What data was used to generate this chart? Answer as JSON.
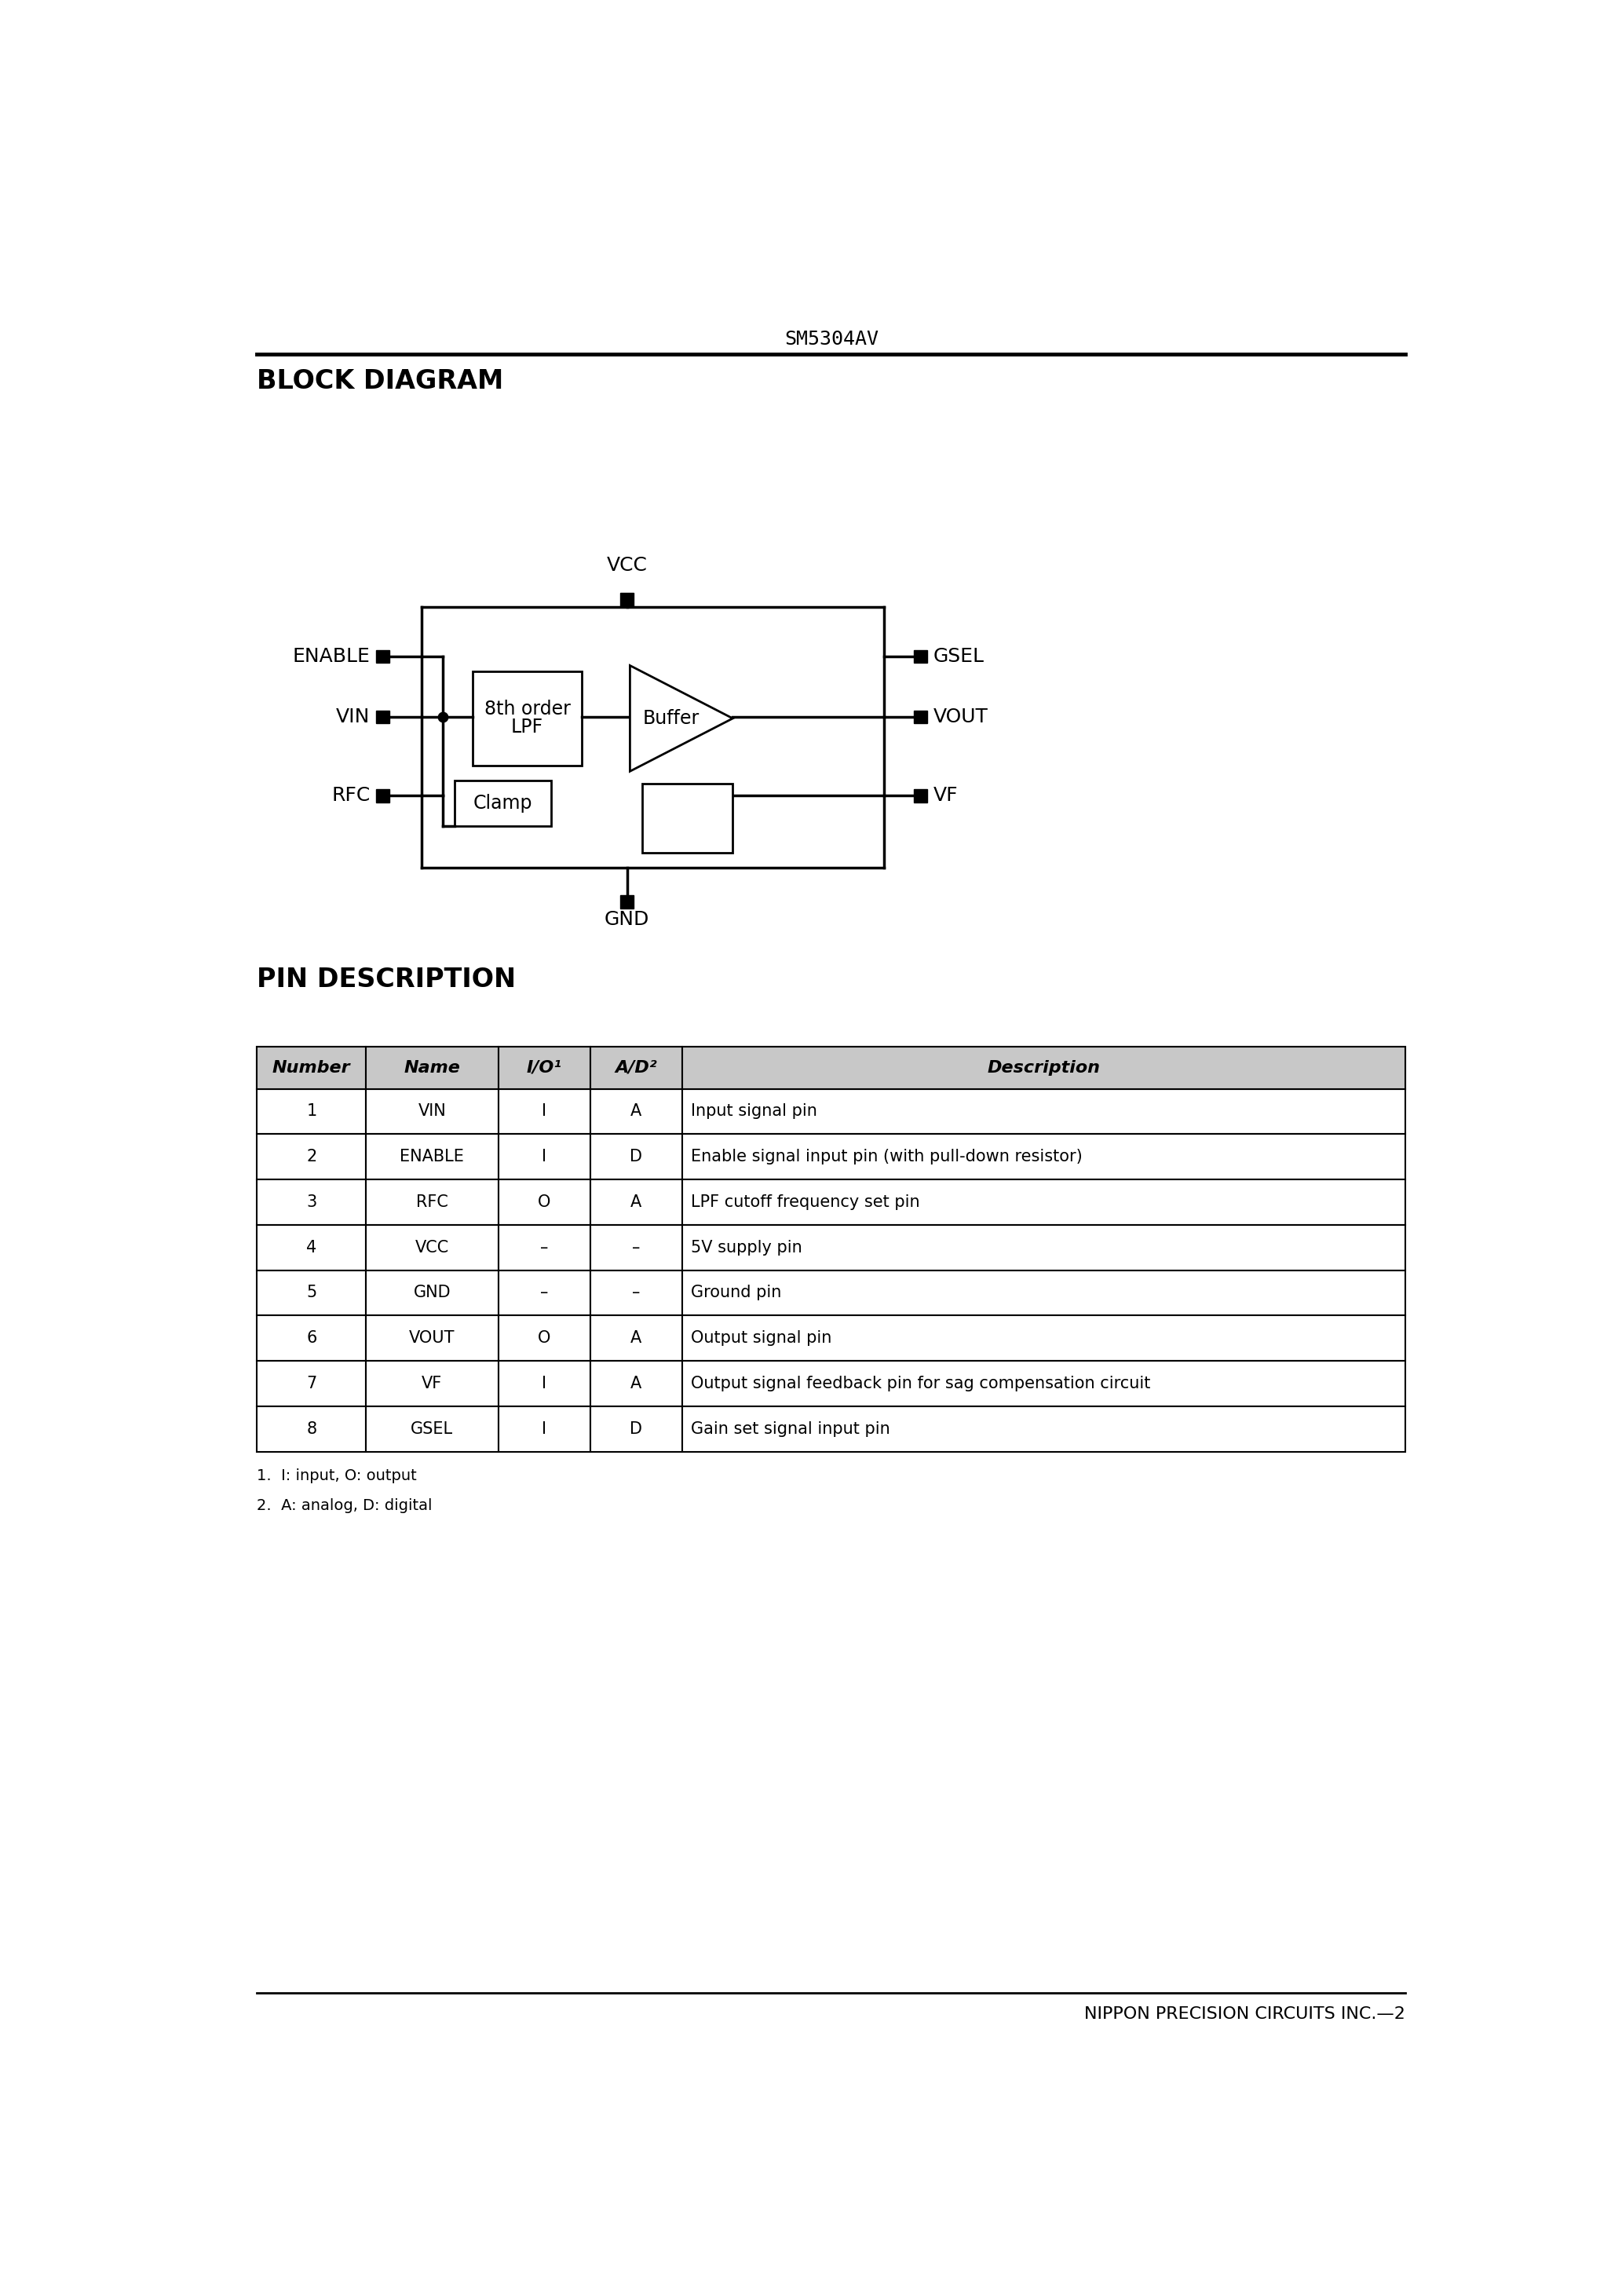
{
  "page_title": "SM5304AV",
  "footer_text": "NIPPON PRECISION CIRCUITS INC.—2",
  "section1_title": "BLOCK DIAGRAM",
  "section2_title": "PIN DESCRIPTION",
  "table": {
    "headers": [
      "Number",
      "Name",
      "I/O¹",
      "A/D²",
      "Description"
    ],
    "rows": [
      [
        "1",
        "VIN",
        "I",
        "A",
        "Input signal pin"
      ],
      [
        "2",
        "ENABLE",
        "I",
        "D",
        "Enable signal input pin (with pull-down resistor)"
      ],
      [
        "3",
        "RFC",
        "O",
        "A",
        "LPF cutoff frequency set pin"
      ],
      [
        "4",
        "VCC",
        "–",
        "–",
        "5V supply pin"
      ],
      [
        "5",
        "GND",
        "–",
        "–",
        "Ground pin"
      ],
      [
        "6",
        "VOUT",
        "O",
        "A",
        "Output signal pin"
      ],
      [
        "7",
        "VF",
        "I",
        "A",
        "Output signal feedback pin for sag compensation circuit"
      ],
      [
        "8",
        "GSEL",
        "I",
        "D",
        "Gain set signal input pin"
      ]
    ],
    "footnotes": [
      "1.  I: input, O: output",
      "2.  A: analog, D: digital"
    ]
  }
}
